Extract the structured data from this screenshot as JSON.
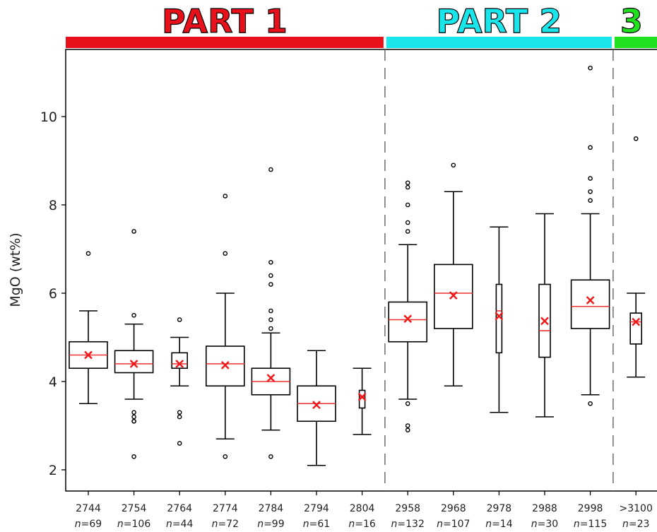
{
  "chart_data": {
    "type": "box",
    "ylabel": "MgO (wt%)",
    "ylim": [
      1.5,
      11.5
    ],
    "yticks": [
      2,
      4,
      6,
      8,
      10
    ],
    "legend": "none",
    "grid": false,
    "part_labels": [
      {
        "label": "PART 1",
        "color": "#e8101a",
        "first_category": 0,
        "last_category": 6
      },
      {
        "label": "PART 2",
        "color": "#19e6ea",
        "first_category": 7,
        "last_category": 11
      },
      {
        "label": "3",
        "color": "#20e020",
        "first_category": 12,
        "last_category": 12
      }
    ],
    "n_prefix": "n",
    "categories": [
      {
        "label": "2744",
        "n": "69",
        "whisker_low": 3.5,
        "q1": 4.3,
        "median": 4.6,
        "q3": 4.9,
        "whisker_high": 5.6,
        "mean": 4.6,
        "outliers": [
          6.9
        ]
      },
      {
        "label": "2754",
        "n": "106",
        "whisker_low": 3.6,
        "q1": 4.2,
        "median": 4.4,
        "q3": 4.7,
        "whisker_high": 5.3,
        "mean": 4.4,
        "outliers": [
          7.4,
          5.5,
          3.3,
          3.2,
          3.1,
          3.1,
          2.3
        ]
      },
      {
        "label": "2764",
        "n": "44",
        "whisker_low": 3.9,
        "q1": 4.3,
        "median": 4.4,
        "q3": 4.65,
        "whisker_high": 5.0,
        "mean": 4.4,
        "outliers": [
          5.4,
          3.3,
          3.2,
          2.6
        ]
      },
      {
        "label": "2774",
        "n": "72",
        "whisker_low": 2.7,
        "q1": 3.9,
        "median": 4.4,
        "q3": 4.8,
        "whisker_high": 6.0,
        "mean": 4.37,
        "outliers": [
          8.2,
          6.9,
          2.3
        ]
      },
      {
        "label": "2784",
        "n": "99",
        "whisker_low": 2.9,
        "q1": 3.7,
        "median": 4.0,
        "q3": 4.3,
        "whisker_high": 5.1,
        "mean": 4.08,
        "outliers": [
          8.8,
          6.7,
          6.4,
          6.2,
          5.6,
          5.4,
          5.2,
          2.3
        ]
      },
      {
        "label": "2794",
        "n": "61",
        "whisker_low": 2.1,
        "q1": 3.1,
        "median": 3.5,
        "q3": 3.9,
        "whisker_high": 4.7,
        "mean": 3.47,
        "outliers": []
      },
      {
        "label": "2804",
        "n": "16",
        "whisker_low": 2.8,
        "q1": 3.4,
        "median": 3.65,
        "q3": 3.8,
        "whisker_high": 4.3,
        "mean": 3.65,
        "outliers": []
      },
      {
        "label": "2958",
        "n": "132",
        "whisker_low": 3.6,
        "q1": 4.9,
        "median": 5.4,
        "q3": 5.8,
        "whisker_high": 7.1,
        "mean": 5.42,
        "outliers": [
          8.5,
          8.4,
          8.0,
          7.6,
          7.4,
          3.5,
          3.0,
          2.9
        ]
      },
      {
        "label": "2968",
        "n": "107",
        "whisker_low": 3.9,
        "q1": 5.2,
        "median": 6.0,
        "q3": 6.65,
        "whisker_high": 8.3,
        "mean": 5.95,
        "outliers": [
          8.9
        ]
      },
      {
        "label": "2978",
        "n": "14",
        "whisker_low": 3.3,
        "q1": 4.65,
        "median": 5.6,
        "q3": 6.2,
        "whisker_high": 7.5,
        "mean": 5.48,
        "outliers": []
      },
      {
        "label": "2988",
        "n": "30",
        "whisker_low": 3.2,
        "q1": 4.55,
        "median": 5.15,
        "q3": 6.2,
        "whisker_high": 7.8,
        "mean": 5.37,
        "outliers": []
      },
      {
        "label": "2998",
        "n": "115",
        "whisker_low": 3.7,
        "q1": 5.2,
        "median": 5.7,
        "q3": 6.3,
        "whisker_high": 7.8,
        "mean": 5.84,
        "outliers": [
          11.1,
          9.3,
          8.6,
          8.3,
          8.1,
          3.5
        ]
      },
      {
        "label": ">3100",
        "n": "23",
        "whisker_low": 4.1,
        "q1": 4.85,
        "median": 5.35,
        "q3": 5.55,
        "whisker_high": 6.0,
        "mean": 5.35,
        "outliers": [
          9.5
        ]
      }
    ],
    "dividers_after_category": [
      6,
      11
    ]
  }
}
